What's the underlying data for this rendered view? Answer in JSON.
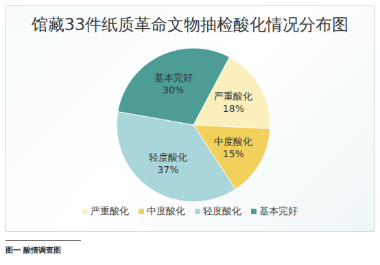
{
  "chart_data": {
    "type": "pie",
    "title": "馆藏33件纸质革命文物抽检酸化情况分布图",
    "categories": [
      "严重酸化",
      "中度酸化",
      "轻度酸化",
      "基本完好"
    ],
    "values": [
      18,
      15,
      37,
      30
    ],
    "value_labels": [
      "18%",
      "15%",
      "37%",
      "30%"
    ],
    "colors": [
      "#fbf0bd",
      "#f1d15c",
      "#a8d6da",
      "#4d9c95"
    ],
    "data_labels": true,
    "legend": "bottom"
  },
  "caption": "图一 酸情调查图"
}
